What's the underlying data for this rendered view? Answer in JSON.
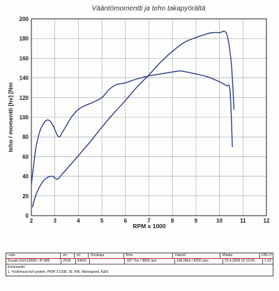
{
  "chart_data": {
    "type": "line",
    "title": "Vääntömomentti ja teho takapyörältä",
    "xlabel": "RPM x 1000",
    "ylabel": "teho / momentti [hv] [Nm",
    "xlim": [
      2,
      12
    ],
    "ylim": [
      0,
      200
    ],
    "xticks": [
      "2",
      "3",
      "4",
      "5",
      "6",
      "7",
      "8",
      "9",
      "10",
      "11",
      "12"
    ],
    "yticks": [
      "0",
      "20",
      "40",
      "60",
      "80",
      "100",
      "120",
      "140",
      "160",
      "180",
      "200"
    ],
    "grid": true,
    "series": [
      {
        "key": "upper",
        "x": [
          2.0,
          2.1,
          2.2,
          2.35,
          2.5,
          2.65,
          2.8,
          2.95,
          3.1,
          3.2,
          3.3,
          3.5,
          3.7,
          4.0,
          4.3,
          4.6,
          5.0,
          5.3,
          5.6,
          6.0,
          6.5,
          7.0,
          7.5,
          8.0,
          8.3,
          8.6,
          9.0,
          9.5,
          10.0,
          10.3,
          10.45,
          10.55
        ],
        "values": [
          32,
          52,
          70,
          85,
          93,
          97,
          96,
          90,
          82,
          80,
          84,
          92,
          100,
          108,
          112,
          115,
          120,
          128,
          133,
          135,
          139,
          142,
          144,
          146,
          147,
          146,
          144,
          141,
          136,
          132,
          127,
          70
        ]
      },
      {
        "key": "lower",
        "x": [
          2.05,
          2.15,
          2.3,
          2.5,
          2.7,
          2.9,
          3.1,
          3.3,
          3.6,
          4.0,
          4.5,
          5.0,
          5.5,
          6.0,
          6.5,
          7.0,
          7.5,
          8.0,
          8.5,
          9.0,
          9.5,
          9.7,
          10.0,
          10.3,
          10.5,
          10.62
        ],
        "values": [
          9,
          18,
          27,
          35,
          39,
          40,
          37,
          42,
          50,
          61,
          75,
          90,
          104,
          117,
          131,
          143,
          156,
          167,
          176,
          181,
          185,
          186,
          186,
          185,
          156,
          108
        ]
      }
    ]
  },
  "info_table": {
    "headers": [
      "Laite",
      "vm",
      "mI",
      "Omistaja",
      "Teho",
      "Vääntö",
      "Mitattu",
      "DIN cf"
    ],
    "values": [
      "Suzuki GSX1300R / IP-885",
      "2009",
      "24041",
      "",
      "187.7hv / 9850 rpm",
      "146.0Nm / 8250 rpm",
      "23.4.2009 10:12:04",
      "1.02"
    ],
    "comments_label": "Kommentit:",
    "comment_line": "1.   Yoshimura full system, PWR 3 USB, JE, KW, Motospeed, K&N"
  }
}
